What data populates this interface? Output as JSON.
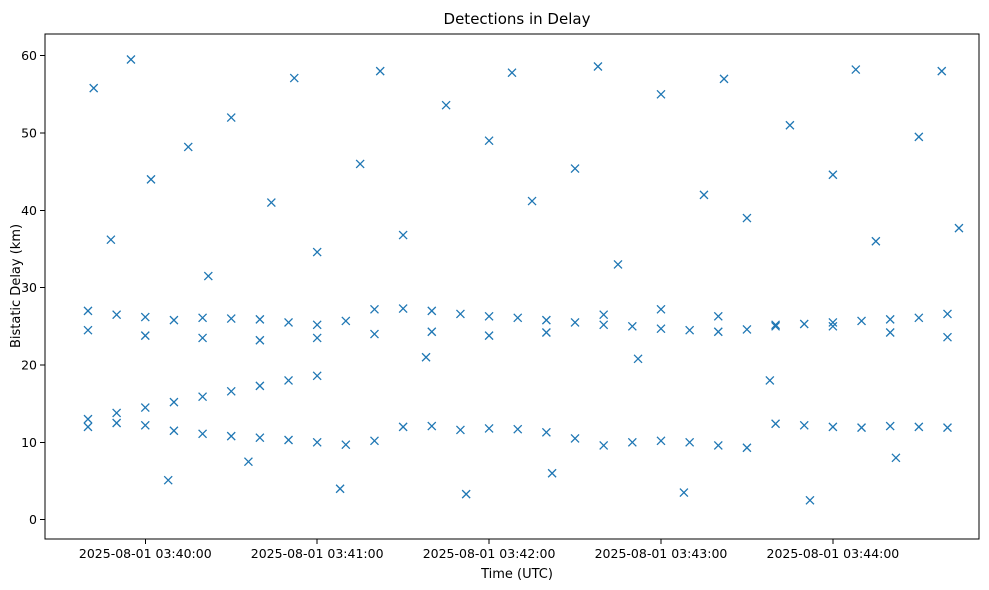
{
  "chart_data": {
    "type": "scatter",
    "title": "Detections in Delay",
    "xlabel": "Time (UTC)",
    "ylabel": "Bistatic Delay (km)",
    "x_ticks": [
      "2025-08-01 03:40:00",
      "2025-08-01 03:41:00",
      "2025-08-01 03:42:00",
      "2025-08-01 03:43:00",
      "2025-08-01 03:44:00"
    ],
    "y_ticks": [
      "0",
      "10",
      "20",
      "30",
      "40",
      "50",
      "60"
    ],
    "xlim": [
      "2025-08-01 03:39:25",
      "2025-08-01 03:44:51"
    ],
    "ylim": [
      -2.5,
      62.8
    ],
    "marker": "x",
    "grid": false,
    "color": "#1f77b4",
    "series": [
      {
        "marker": "x",
        "points": [
          [
            "03:39:40",
            12.0
          ],
          [
            "03:39:50",
            12.5
          ],
          [
            "03:40:00",
            12.2
          ],
          [
            "03:40:10",
            11.5
          ],
          [
            "03:40:20",
            11.1
          ],
          [
            "03:40:30",
            10.8
          ],
          [
            "03:40:40",
            10.6
          ],
          [
            "03:40:50",
            10.3
          ],
          [
            "03:41:00",
            10.0
          ],
          [
            "03:41:10",
            9.7
          ],
          [
            "03:41:20",
            10.2
          ],
          [
            "03:41:30",
            12.0
          ],
          [
            "03:41:40",
            12.1
          ],
          [
            "03:41:50",
            11.6
          ],
          [
            "03:42:00",
            11.8
          ],
          [
            "03:42:10",
            11.7
          ],
          [
            "03:42:20",
            11.3
          ],
          [
            "03:42:30",
            10.5
          ],
          [
            "03:42:40",
            9.6
          ],
          [
            "03:42:50",
            10.0
          ],
          [
            "03:43:00",
            10.2
          ],
          [
            "03:43:10",
            10.0
          ],
          [
            "03:43:20",
            9.6
          ],
          [
            "03:43:30",
            9.3
          ],
          [
            "03:43:40",
            12.4
          ],
          [
            "03:43:50",
            12.2
          ],
          [
            "03:44:00",
            12.0
          ],
          [
            "03:44:10",
            11.9
          ],
          [
            "03:44:20",
            12.1
          ],
          [
            "03:44:30",
            12.0
          ],
          [
            "03:44:40",
            11.9
          ],
          [
            "03:39:40",
            13.0
          ],
          [
            "03:39:50",
            13.8
          ],
          [
            "03:40:00",
            14.5
          ],
          [
            "03:40:10",
            15.2
          ],
          [
            "03:40:20",
            15.9
          ],
          [
            "03:40:30",
            16.6
          ],
          [
            "03:40:40",
            17.3
          ],
          [
            "03:40:50",
            18.0
          ],
          [
            "03:41:00",
            18.6
          ],
          [
            "03:39:40",
            27.0
          ],
          [
            "03:39:50",
            26.5
          ],
          [
            "03:40:00",
            26.2
          ],
          [
            "03:40:10",
            25.8
          ],
          [
            "03:40:20",
            26.1
          ],
          [
            "03:40:30",
            26.0
          ],
          [
            "03:40:40",
            25.9
          ],
          [
            "03:40:50",
            25.5
          ],
          [
            "03:41:00",
            25.2
          ],
          [
            "03:41:10",
            25.7
          ],
          [
            "03:41:20",
            27.2
          ],
          [
            "03:41:30",
            27.3
          ],
          [
            "03:41:40",
            27.0
          ],
          [
            "03:41:50",
            26.6
          ],
          [
            "03:42:00",
            26.3
          ],
          [
            "03:42:10",
            26.1
          ],
          [
            "03:42:20",
            25.8
          ],
          [
            "03:42:30",
            25.5
          ],
          [
            "03:42:40",
            25.2
          ],
          [
            "03:42:50",
            25.0
          ],
          [
            "03:43:00",
            24.7
          ],
          [
            "03:43:10",
            24.5
          ],
          [
            "03:43:20",
            24.3
          ],
          [
            "03:43:30",
            24.6
          ],
          [
            "03:43:40",
            25.0
          ],
          [
            "03:43:50",
            25.3
          ],
          [
            "03:44:00",
            25.5
          ],
          [
            "03:44:10",
            25.7
          ],
          [
            "03:44:20",
            25.9
          ],
          [
            "03:44:30",
            26.1
          ],
          [
            "03:44:40",
            26.6
          ],
          [
            "03:39:40",
            24.5
          ],
          [
            "03:40:00",
            23.8
          ],
          [
            "03:40:20",
            23.5
          ],
          [
            "03:40:40",
            23.2
          ],
          [
            "03:41:00",
            23.5
          ],
          [
            "03:41:20",
            24.0
          ],
          [
            "03:41:40",
            24.3
          ],
          [
            "03:42:00",
            23.8
          ],
          [
            "03:42:20",
            24.2
          ],
          [
            "03:42:40",
            26.5
          ],
          [
            "03:43:00",
            27.2
          ],
          [
            "03:43:20",
            26.3
          ],
          [
            "03:43:40",
            25.2
          ],
          [
            "03:44:00",
            25.0
          ],
          [
            "03:44:20",
            24.2
          ],
          [
            "03:44:40",
            23.6
          ],
          [
            "03:39:42",
            55.8
          ],
          [
            "03:39:48",
            36.2
          ],
          [
            "03:39:55",
            59.5
          ],
          [
            "03:40:02",
            44.0
          ],
          [
            "03:40:08",
            5.1
          ],
          [
            "03:40:15",
            48.2
          ],
          [
            "03:40:22",
            31.5
          ],
          [
            "03:40:30",
            52.0
          ],
          [
            "03:40:36",
            7.5
          ],
          [
            "03:40:44",
            41.0
          ],
          [
            "03:40:52",
            57.1
          ],
          [
            "03:41:00",
            34.6
          ],
          [
            "03:41:08",
            4.0
          ],
          [
            "03:41:15",
            46.0
          ],
          [
            "03:41:22",
            58.0
          ],
          [
            "03:41:30",
            36.8
          ],
          [
            "03:41:38",
            21.0
          ],
          [
            "03:41:45",
            53.6
          ],
          [
            "03:41:52",
            3.3
          ],
          [
            "03:42:00",
            49.0
          ],
          [
            "03:42:08",
            57.8
          ],
          [
            "03:42:15",
            41.2
          ],
          [
            "03:42:22",
            6.0
          ],
          [
            "03:42:30",
            45.4
          ],
          [
            "03:42:38",
            58.6
          ],
          [
            "03:42:45",
            33.0
          ],
          [
            "03:42:52",
            20.8
          ],
          [
            "03:43:00",
            55.0
          ],
          [
            "03:43:08",
            3.5
          ],
          [
            "03:43:15",
            42.0
          ],
          [
            "03:43:22",
            57.0
          ],
          [
            "03:43:30",
            39.0
          ],
          [
            "03:43:38",
            18.0
          ],
          [
            "03:43:45",
            51.0
          ],
          [
            "03:43:52",
            2.5
          ],
          [
            "03:44:00",
            44.6
          ],
          [
            "03:44:08",
            58.2
          ],
          [
            "03:44:15",
            36.0
          ],
          [
            "03:44:22",
            8.0
          ],
          [
            "03:44:30",
            49.5
          ],
          [
            "03:44:38",
            58.0
          ],
          [
            "03:44:44",
            37.7
          ]
        ]
      }
    ]
  }
}
